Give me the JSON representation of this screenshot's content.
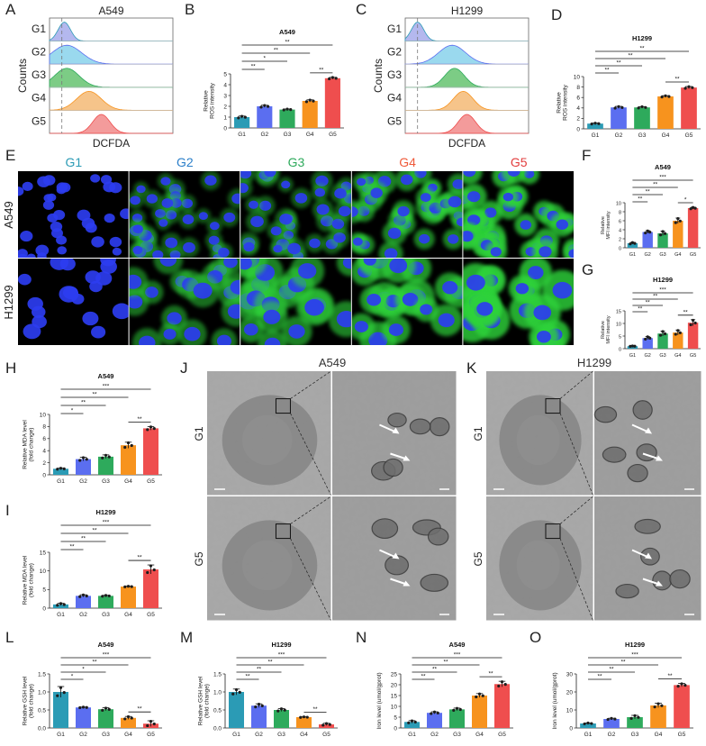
{
  "group_colors": [
    "#2b9bb5",
    "#5b6ef0",
    "#2eaa5c",
    "#f7931e",
    "#ef4e4e"
  ],
  "histogram_colors": [
    "#b4b8ee",
    "#9ad9ee",
    "#7ccc85",
    "#f6c48a",
    "#f39b9b"
  ],
  "groups": [
    "G1",
    "G2",
    "G3",
    "G4",
    "G5"
  ],
  "panels": {
    "A": {
      "letter": "A",
      "title": "A549",
      "ylabel": "Counts",
      "xlabel": "DCFDA",
      "rows": [
        "G1",
        "G2",
        "G3",
        "G4",
        "G5"
      ]
    },
    "C": {
      "letter": "C",
      "title": "H1299",
      "ylabel": "Counts",
      "xlabel": "DCFDA",
      "rows": [
        "G1",
        "G2",
        "G3",
        "G4",
        "G5"
      ]
    },
    "E": {
      "letter": "E",
      "columns": [
        "G1",
        "G2",
        "G3",
        "G4",
        "G5"
      ],
      "column_colors": [
        "#2b9bb5",
        "#2b7fc9",
        "#2eaa5c",
        "#ef5a3a",
        "#e23d3d"
      ],
      "rows": [
        "A549",
        "H1299"
      ],
      "green_intensity": [
        [
          0.05,
          0.25,
          0.3,
          0.6,
          0.85
        ],
        [
          0.08,
          0.45,
          0.6,
          0.75,
          0.95
        ]
      ]
    },
    "J": {
      "letter": "J",
      "title": "A549",
      "rows": [
        "G1",
        "G5"
      ]
    },
    "K": {
      "letter": "K",
      "title": "H1299",
      "rows": [
        "G1",
        "G5"
      ]
    }
  },
  "chart_data": [
    {
      "id": "B",
      "type": "bar",
      "title": "A549",
      "ylabel": "Relative\nROS intensity",
      "categories": [
        "G1",
        "G2",
        "G3",
        "G4",
        "G5"
      ],
      "values": [
        1.0,
        2.0,
        1.7,
        2.5,
        4.6
      ],
      "errors": [
        0.1,
        0.1,
        0.05,
        0.1,
        0.08
      ],
      "ylim": [
        0,
        5
      ],
      "yticks": [
        "0",
        "1",
        "2",
        "3",
        "4",
        "5"
      ],
      "brackets": [
        {
          "from": 0,
          "to": 4,
          "label": "**"
        },
        {
          "from": 0,
          "to": 3,
          "label": "**"
        },
        {
          "from": 0,
          "to": 2,
          "label": "*"
        },
        {
          "from": 0,
          "to": 1,
          "label": "**"
        },
        {
          "from": 3,
          "to": 4,
          "label": "**"
        }
      ]
    },
    {
      "id": "D",
      "type": "bar",
      "title": "H1299",
      "ylabel": "Relative\nROS intensity",
      "categories": [
        "G1",
        "G2",
        "G3",
        "G4",
        "G5"
      ],
      "values": [
        1.0,
        4.1,
        4.1,
        6.2,
        7.9
      ],
      "errors": [
        0.1,
        0.2,
        0.15,
        0.15,
        0.2
      ],
      "ylim": [
        0,
        10
      ],
      "yticks": [
        "0",
        "2",
        "4",
        "6",
        "8",
        "10"
      ],
      "brackets": [
        {
          "from": 0,
          "to": 4,
          "label": "**"
        },
        {
          "from": 0,
          "to": 3,
          "label": "**"
        },
        {
          "from": 0,
          "to": 2,
          "label": "**"
        },
        {
          "from": 0,
          "to": 1,
          "label": "**"
        },
        {
          "from": 3,
          "to": 4,
          "label": "**"
        }
      ]
    },
    {
      "id": "F",
      "type": "bar",
      "title": "A549",
      "ylabel": "Relative\nMFI intensity",
      "categories": [
        "G1",
        "G2",
        "G3",
        "G4",
        "G5"
      ],
      "values": [
        1.0,
        3.5,
        3.2,
        6.0,
        8.8
      ],
      "errors": [
        0.2,
        0.3,
        0.5,
        0.6,
        0.2
      ],
      "ylim": [
        0,
        10
      ],
      "yticks": [
        "0",
        "2",
        "4",
        "6",
        "8",
        "10"
      ],
      "brackets": [
        {
          "from": 0,
          "to": 4,
          "label": "***"
        },
        {
          "from": 0,
          "to": 3,
          "label": "**"
        },
        {
          "from": 0,
          "to": 2,
          "label": "**"
        },
        {
          "from": 0,
          "to": 1,
          "label": "**"
        },
        {
          "from": 3,
          "to": 4,
          "label": "*"
        }
      ]
    },
    {
      "id": "G",
      "type": "bar",
      "title": "H1299",
      "ylabel": "Relative\nMFI intensity",
      "categories": [
        "G1",
        "G2",
        "G3",
        "G4",
        "G5"
      ],
      "values": [
        1.0,
        4.2,
        6.0,
        6.4,
        10.3
      ],
      "errors": [
        0.1,
        0.6,
        1.0,
        1.0,
        1.2
      ],
      "ylim": [
        0,
        15
      ],
      "yticks": [
        "0",
        "5",
        "10",
        "15"
      ],
      "brackets": [
        {
          "from": 0,
          "to": 4,
          "label": "***"
        },
        {
          "from": 0,
          "to": 3,
          "label": "**"
        },
        {
          "from": 0,
          "to": 2,
          "label": "**"
        },
        {
          "from": 0,
          "to": 1,
          "label": "**"
        },
        {
          "from": 3,
          "to": 4,
          "label": "**"
        }
      ]
    },
    {
      "id": "H",
      "type": "bar",
      "title": "A549",
      "ylabel": "Relative MDA level\n(fold change)",
      "categories": [
        "G1",
        "G2",
        "G3",
        "G4",
        "G5"
      ],
      "values": [
        1.0,
        2.6,
        3.0,
        4.9,
        7.7
      ],
      "errors": [
        0.1,
        0.3,
        0.3,
        0.5,
        0.3
      ],
      "ylim": [
        0,
        10
      ],
      "yticks": [
        "0",
        "2",
        "4",
        "6",
        "8",
        "10"
      ],
      "brackets": [
        {
          "from": 0,
          "to": 4,
          "label": "***"
        },
        {
          "from": 0,
          "to": 3,
          "label": "**"
        },
        {
          "from": 0,
          "to": 2,
          "label": "**"
        },
        {
          "from": 0,
          "to": 1,
          "label": "*"
        },
        {
          "from": 3,
          "to": 4,
          "label": "**"
        }
      ]
    },
    {
      "id": "I",
      "type": "bar",
      "title": "H1299",
      "ylabel": "Relative MDA level\n(fold change)",
      "categories": [
        "G1",
        "G2",
        "G3",
        "G4",
        "G5"
      ],
      "values": [
        1.0,
        3.3,
        3.3,
        5.8,
        10.4
      ],
      "errors": [
        0.3,
        0.3,
        0.15,
        0.1,
        1.2
      ],
      "ylim": [
        0,
        15
      ],
      "yticks": [
        "0",
        "5",
        "10",
        "15"
      ],
      "brackets": [
        {
          "from": 0,
          "to": 4,
          "label": "***"
        },
        {
          "from": 0,
          "to": 3,
          "label": "**"
        },
        {
          "from": 0,
          "to": 2,
          "label": "**"
        },
        {
          "from": 0,
          "to": 1,
          "label": "**"
        },
        {
          "from": 3,
          "to": 4,
          "label": "**"
        }
      ]
    },
    {
      "id": "L",
      "type": "bar",
      "title": "A549",
      "ylabel": "Relative GSH level\n(fold change)",
      "categories": [
        "G1",
        "G2",
        "G3",
        "G4",
        "G5"
      ],
      "values": [
        1.0,
        0.57,
        0.52,
        0.28,
        0.12
      ],
      "errors": [
        0.15,
        0.01,
        0.04,
        0.04,
        0.08
      ],
      "ylim": [
        0,
        1.5
      ],
      "yticks": [
        "0.0",
        "0.5",
        "1.0",
        "1.5"
      ],
      "brackets": [
        {
          "from": 0,
          "to": 4,
          "label": "***"
        },
        {
          "from": 0,
          "to": 3,
          "label": "**"
        },
        {
          "from": 0,
          "to": 2,
          "label": "*"
        },
        {
          "from": 0,
          "to": 1,
          "label": "*"
        },
        {
          "from": 3,
          "to": 4,
          "label": "**"
        }
      ]
    },
    {
      "id": "M",
      "type": "bar",
      "title": "H1299",
      "ylabel": "Relative GSH level\n(fold change)",
      "categories": [
        "G1",
        "G2",
        "G3",
        "G4",
        "G5"
      ],
      "values": [
        1.0,
        0.62,
        0.5,
        0.3,
        0.1
      ],
      "errors": [
        0.08,
        0.05,
        0.04,
        0.01,
        0.03
      ],
      "ylim": [
        0,
        1.5
      ],
      "yticks": [
        "0.0",
        "0.5",
        "1.0",
        "1.5"
      ],
      "brackets": [
        {
          "from": 0,
          "to": 4,
          "label": "***"
        },
        {
          "from": 0,
          "to": 3,
          "label": "**"
        },
        {
          "from": 0,
          "to": 2,
          "label": "**"
        },
        {
          "from": 0,
          "to": 1,
          "label": "**"
        },
        {
          "from": 3,
          "to": 4,
          "label": "**"
        }
      ]
    },
    {
      "id": "N",
      "type": "bar",
      "title": "A549",
      "ylabel": "Iron level (umol/gprot)",
      "categories": [
        "G1",
        "G2",
        "G3",
        "G4",
        "G5"
      ],
      "values": [
        2.8,
        7.0,
        8.6,
        15.0,
        20.3
      ],
      "errors": [
        0.6,
        0.5,
        0.6,
        0.9,
        1.3
      ],
      "ylim": [
        0,
        25
      ],
      "yticks": [
        "0",
        "5",
        "10",
        "15",
        "20",
        "25"
      ],
      "brackets": [
        {
          "from": 0,
          "to": 4,
          "label": "***"
        },
        {
          "from": 0,
          "to": 3,
          "label": "**"
        },
        {
          "from": 0,
          "to": 2,
          "label": "**"
        },
        {
          "from": 0,
          "to": 1,
          "label": "**"
        },
        {
          "from": 3,
          "to": 4,
          "label": "**"
        }
      ]
    },
    {
      "id": "O",
      "type": "bar",
      "title": "H1299",
      "ylabel": "Iron level (umol/gprot)",
      "categories": [
        "G1",
        "G2",
        "G3",
        "G4",
        "G5"
      ],
      "values": [
        2.5,
        5.0,
        6.0,
        12.5,
        23.8
      ],
      "errors": [
        0.3,
        0.4,
        1.0,
        1.2,
        0.9
      ],
      "ylim": [
        0,
        30
      ],
      "yticks": [
        "0",
        "10",
        "20",
        "30"
      ],
      "brackets": [
        {
          "from": 0,
          "to": 4,
          "label": "***"
        },
        {
          "from": 0,
          "to": 3,
          "label": "**"
        },
        {
          "from": 0,
          "to": 2,
          "label": "**"
        },
        {
          "from": 0,
          "to": 1,
          "label": "**"
        },
        {
          "from": 3,
          "to": 4,
          "label": "**"
        }
      ]
    }
  ]
}
